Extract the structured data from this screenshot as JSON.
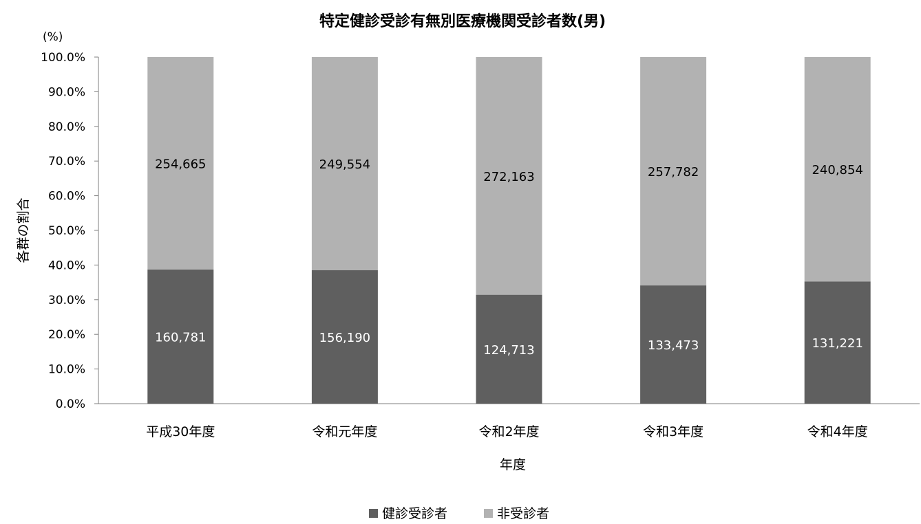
{
  "chart_data": {
    "type": "bar",
    "stacked": "percent",
    "title": "特定健診受診有無別医療機関受診者数(男)",
    "y_unit_label": "(%)",
    "xlabel": "年度",
    "ylabel": "各群の割合",
    "ylim": [
      0,
      100
    ],
    "yticks": [
      "0.0%",
      "10.0%",
      "20.0%",
      "30.0%",
      "40.0%",
      "50.0%",
      "60.0%",
      "70.0%",
      "80.0%",
      "90.0%",
      "100.0%"
    ],
    "categories": [
      "平成30年度",
      "令和元年度",
      "令和2年度",
      "令和3年度",
      "令和4年度"
    ],
    "series": [
      {
        "name": "健診受診者",
        "values": [
          160781,
          156190,
          124713,
          133473,
          131221
        ],
        "labels": [
          "160,781",
          "156,190",
          "124,713",
          "133,473",
          "131,221"
        ],
        "color": "#5f5f5f",
        "label_color": "#ffffff"
      },
      {
        "name": "非受診者",
        "values": [
          254665,
          249554,
          272163,
          257782,
          240854
        ],
        "labels": [
          "254,665",
          "249,554",
          "272,163",
          "257,782",
          "240,854"
        ],
        "color": "#b2b2b2",
        "label_color": "#000000"
      }
    ],
    "legend_position": "bottom",
    "grid": false
  }
}
